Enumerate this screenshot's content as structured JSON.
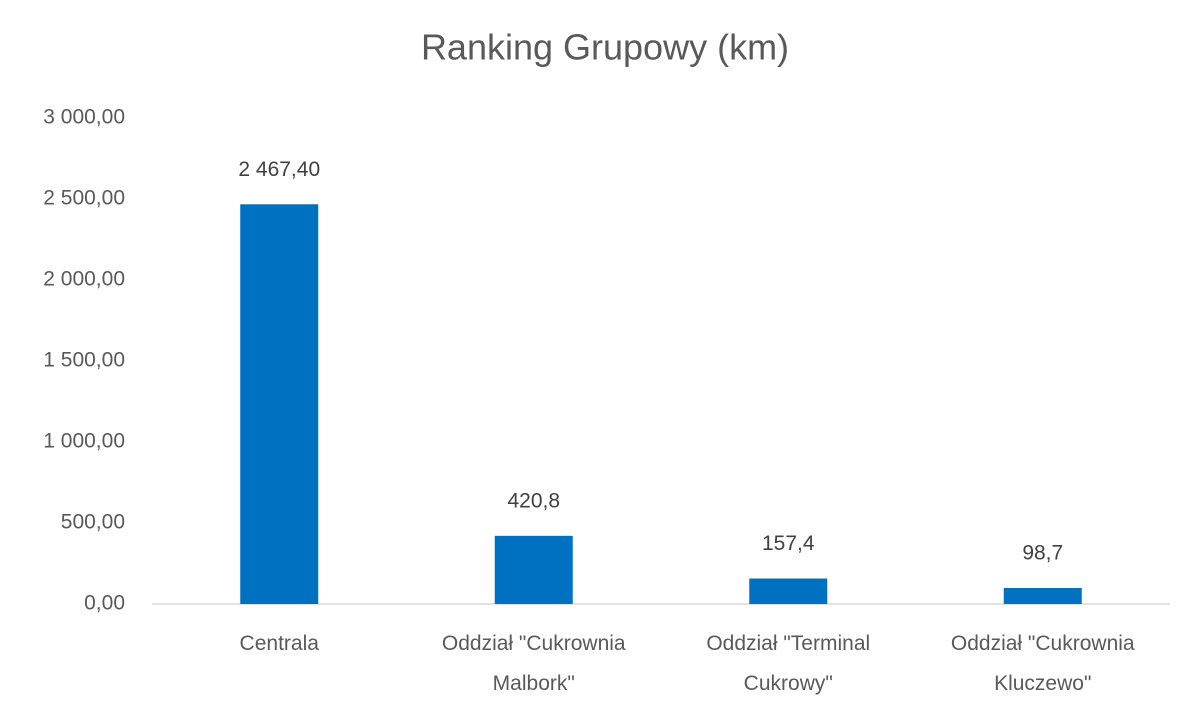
{
  "chart_data": {
    "type": "bar",
    "title": "Ranking Grupowy (km)",
    "categories": [
      "Centrala",
      "Oddział \"Cukrownia Malbork\"",
      "Oddział \"Terminal Cukrowy\"",
      "Oddział \"Cukrownia Kluczewo\""
    ],
    "values": [
      2467.4,
      420.8,
      157.4,
      98.7
    ],
    "value_labels": [
      "2 467,40",
      "420,8",
      "157,4",
      "98,7"
    ],
    "color": "#0070c0",
    "ylim": [
      0,
      3000
    ],
    "yticks": [
      {
        "value": 0,
        "label": "0,00"
      },
      {
        "value": 500,
        "label": "500,00"
      },
      {
        "value": 1000,
        "label": "1 000,00"
      },
      {
        "value": 1500,
        "label": "1 500,00"
      },
      {
        "value": 2000,
        "label": "2 000,00"
      },
      {
        "value": 2500,
        "label": "2 500,00"
      },
      {
        "value": 3000,
        "label": "3 000,00"
      }
    ],
    "grid": false
  }
}
